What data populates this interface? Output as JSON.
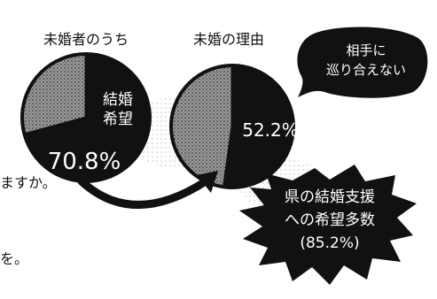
{
  "chart_data": [
    {
      "type": "pie",
      "title": "未婚者のうち",
      "categories": [
        "結婚希望",
        ""
      ],
      "values": [
        70.8,
        29.2
      ],
      "highlight_label": "結婚\n希望",
      "data_label": "70.8%"
    },
    {
      "type": "pie",
      "title": "未婚の理由",
      "categories": [
        "",
        ""
      ],
      "values": [
        52.2,
        47.8
      ],
      "data_label": "52.2%"
    }
  ],
  "callouts": {
    "reason_bubble": "相手に\n巡り合えない",
    "support_burst": "県の結婚支援\nへの希望多数\n(85.2%)"
  },
  "cropped_text": {
    "line1": "ますか。",
    "line2": "を。"
  },
  "colors": {
    "ink": "#111111",
    "paper": "#ffffff",
    "hatch_light": "#8c8c8c",
    "hatch_dark": "#4a4a4a"
  }
}
